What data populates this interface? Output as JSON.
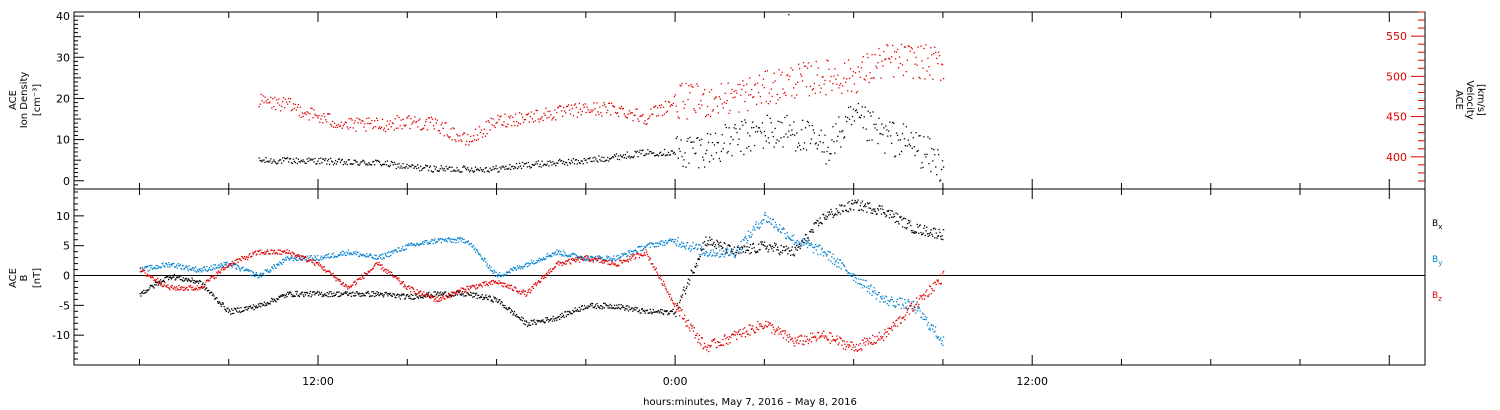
{
  "chart_data": [
    {
      "type": "scatter",
      "panel": "top",
      "ylabel_left": [
        "ACE",
        "Ion Density",
        "[cm⁻³]"
      ],
      "ylabel_right": [
        "ACE",
        "Velocity",
        "[km/s]"
      ],
      "ylim_left": [
        -2,
        41
      ],
      "yticks_left": [
        0,
        10,
        20,
        30,
        40
      ],
      "ylim_right": [
        360,
        580
      ],
      "yticks_right": [
        400,
        450,
        500,
        550
      ],
      "series": [
        {
          "axis": "left",
          "color": "#000000",
          "x_hours": [
            -14,
            -13,
            -12,
            -11,
            -10,
            -9,
            -8,
            -7,
            -6,
            -5,
            -4,
            -3,
            -2,
            -1,
            0,
            1,
            2,
            3,
            4,
            5,
            6,
            7,
            8,
            9
          ],
          "values": [
            5,
            5,
            5,
            4.5,
            4.5,
            3.5,
            3,
            3,
            3,
            4,
            4.5,
            5,
            6,
            7,
            7,
            8,
            10,
            12,
            12,
            8,
            15,
            11,
            9,
            3.5
          ]
        },
        {
          "axis": "right",
          "color": "#e00000",
          "x_hours": [
            -14,
            -13,
            -12,
            -11,
            -10,
            -9,
            -8,
            -7,
            -6,
            -5,
            -4,
            -3,
            -2,
            -1,
            0,
            1,
            2,
            3,
            4,
            5,
            6,
            7,
            8,
            9
          ],
          "values": [
            470,
            465,
            450,
            440,
            440,
            445,
            440,
            420,
            445,
            450,
            455,
            460,
            460,
            450,
            470,
            470,
            475,
            485,
            495,
            500,
            500,
            520,
            520,
            515
          ]
        }
      ]
    },
    {
      "type": "scatter",
      "panel": "bottom",
      "ylabel": [
        "ACE",
        "B",
        "[nT]"
      ],
      "ylim": [
        -15,
        14.5
      ],
      "yticks": [
        -10,
        -5,
        0,
        5,
        10
      ],
      "x_hours": [
        -18,
        -17,
        -16,
        -15,
        -14,
        -13,
        -12,
        -11,
        -10,
        -9,
        -8,
        -7,
        -6,
        -5,
        -4,
        -3,
        -2,
        -1,
        0,
        1,
        2,
        3,
        4,
        5,
        6,
        7,
        8,
        9
      ],
      "series": [
        {
          "name": "Bx",
          "color": "#000000",
          "values": [
            -3,
            0,
            -1,
            -6,
            -5,
            -3,
            -3,
            -3,
            -3,
            -3.5,
            -3,
            -3,
            -4,
            -8,
            -7,
            -5,
            -5,
            -6,
            -6,
            6,
            4,
            5,
            4,
            10,
            12,
            11,
            8,
            7
          ]
        },
        {
          "name": "By",
          "color": "#0080d0",
          "values": [
            1,
            2,
            1,
            2,
            0,
            3,
            3,
            4,
            3,
            5,
            6,
            6,
            0,
            2,
            4,
            3,
            3,
            5,
            6,
            4,
            4,
            10,
            6,
            4,
            0,
            -4,
            -5,
            -11
          ]
        },
        {
          "name": "Bz",
          "color": "#e00000",
          "values": [
            1,
            -2,
            -2,
            2,
            4,
            4,
            2,
            -2,
            2,
            -2,
            -4,
            -2,
            -1,
            -3,
            2,
            3,
            2,
            4,
            -5,
            -12,
            -10,
            -8,
            -11,
            -10,
            -12,
            -10,
            -5,
            0
          ]
        }
      ]
    }
  ],
  "legend": {
    "bx": {
      "base": "B",
      "sub": "x",
      "color": "#000000"
    },
    "by": {
      "base": "B",
      "sub": "y",
      "color": "#0080d0"
    },
    "bz": {
      "base": "B",
      "sub": "z",
      "color": "#e00000"
    }
  },
  "time_axis": {
    "x_range_hours": [
      -20.2,
      25.2
    ],
    "labeled_ticks": [
      {
        "hour": -12,
        "label": "12:00"
      },
      {
        "hour": 0,
        "label": "0:00"
      },
      {
        "hour": 12,
        "label": "12:00"
      }
    ],
    "footer": "hours:minutes, May  7, 2016 – May  8, 2016"
  },
  "stray_point": {
    "x_hours": 3.8,
    "panel": "top",
    "y_left": 40.5
  }
}
